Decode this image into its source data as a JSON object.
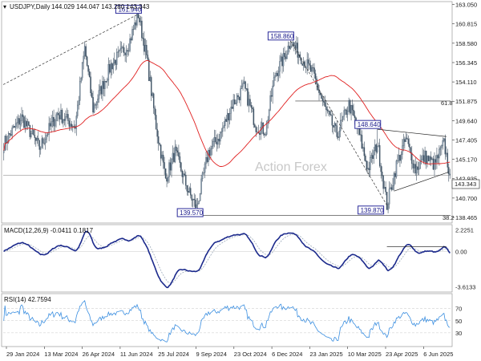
{
  "chart_data": [
    {
      "type": "candlestick",
      "title": "USDJPY,Daily",
      "ohlc_label": "144.029 144.047 143.280 143.343",
      "watermark": "Action Forex",
      "last_price": "143.343",
      "ylim": [
        138.0,
        163.2
      ],
      "y_ticks": [
        "163.050",
        "160.815",
        "158.580",
        "156.345",
        "154.110",
        "151.875",
        "149.640",
        "147.405",
        "145.170",
        "142.935",
        "140.700",
        "138.465"
      ],
      "x_labels": [
        "29 Jan 2024",
        "13 Mar 2024",
        "26 Apr 2024",
        "11 Jun 2024",
        "25 Jul 2024",
        "9 Sep 2024",
        "23 Oct 2024",
        "6 Dec 2024",
        "23 Jan 2025",
        "10 Mar 2025",
        "23 Apr 2025",
        "6 Jun 2025"
      ],
      "pivots": [
        {
          "label": "161.940",
          "value": 161.94,
          "bar": 113
        },
        {
          "label": "139.570",
          "value": 139.57,
          "bar": 162
        },
        {
          "label": "158.860",
          "value": 158.86,
          "bar": 241
        },
        {
          "label": "148.640",
          "value": 148.64,
          "bar": 314
        },
        {
          "label": "139.870",
          "value": 139.87,
          "bar": 322
        }
      ],
      "fib_labels": [
        "61.8",
        "38.2"
      ],
      "anchors": [
        [
          0,
          147.0
        ],
        [
          15,
          150.0
        ],
        [
          30,
          146.5
        ],
        [
          45,
          150.5
        ],
        [
          60,
          149.0
        ],
        [
          68,
          158.0
        ],
        [
          75,
          151.0
        ],
        [
          90,
          156.0
        ],
        [
          105,
          158.5
        ],
        [
          113,
          161.94
        ],
        [
          120,
          157.0
        ],
        [
          128,
          149.0
        ],
        [
          136,
          143.0
        ],
        [
          144,
          146.0
        ],
        [
          155,
          141.5
        ],
        [
          162,
          139.57
        ],
        [
          172,
          146.0
        ],
        [
          182,
          148.0
        ],
        [
          192,
          151.5
        ],
        [
          202,
          153.5
        ],
        [
          212,
          149.0
        ],
        [
          220,
          148.5
        ],
        [
          228,
          155.0
        ],
        [
          236,
          157.0
        ],
        [
          241,
          158.86
        ],
        [
          250,
          157.0
        ],
        [
          260,
          155.0
        ],
        [
          270,
          151.0
        ],
        [
          280,
          148.0
        ],
        [
          290,
          151.5
        ],
        [
          298,
          148.5
        ],
        [
          306,
          144.0
        ],
        [
          314,
          147.0
        ],
        [
          322,
          139.87
        ],
        [
          330,
          144.5
        ],
        [
          338,
          147.5
        ],
        [
          346,
          144.0
        ],
        [
          354,
          145.5
        ],
        [
          362,
          144.5
        ],
        [
          370,
          147.0
        ],
        [
          375,
          143.343
        ]
      ]
    },
    {
      "type": "line",
      "title": "MACD(12,26,9) -0.0411 0.1817",
      "y_ticks": [
        "2.2251",
        "0.00",
        "-3.6133"
      ],
      "ylim": [
        -4.0,
        2.6
      ]
    },
    {
      "type": "line",
      "title": "RSI(14) 42.7594",
      "y_ticks": [
        "70",
        "50",
        "30"
      ],
      "ylim": [
        10,
        92
      ]
    }
  ]
}
